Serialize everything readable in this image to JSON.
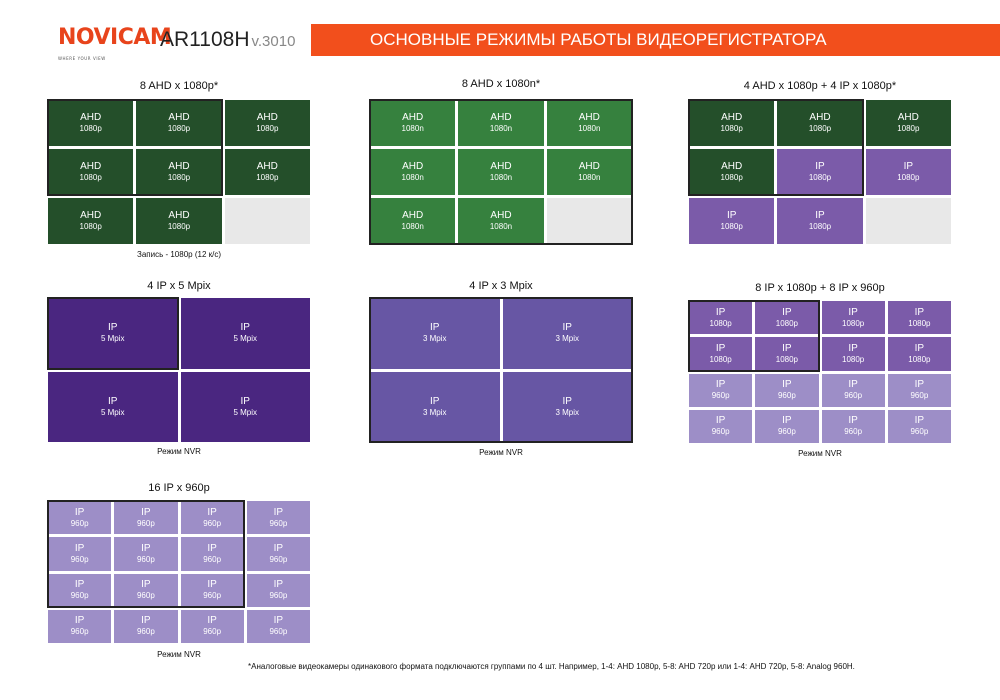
{
  "header": {
    "logo": "NOVICAM",
    "logo_tagline": "WHERE YOUR VIEW",
    "model": "AR1108H",
    "version": "v.3010",
    "title": "ОСНОВНЫЕ РЕЖИМЫ РАБОТЫ ВИДЕОРЕГИСТРАТОРА"
  },
  "panels": [
    {
      "id": "8ahd1080p",
      "title": "8 AHD x 1080p*",
      "note": "Запись - 1080p (12 к/с)",
      "cols": 3,
      "cells": [
        {
          "t": "AHD",
          "s": "1080p",
          "c": "ahd"
        },
        {
          "t": "AHD",
          "s": "1080p",
          "c": "ahd"
        },
        {
          "t": "AHD",
          "s": "1080p",
          "c": "ahd"
        },
        {
          "t": "AHD",
          "s": "1080p",
          "c": "ahd"
        },
        {
          "t": "AHD",
          "s": "1080p",
          "c": "ahd"
        },
        {
          "t": "AHD",
          "s": "1080p",
          "c": "ahd"
        },
        {
          "t": "AHD",
          "s": "1080p",
          "c": "ahd"
        },
        {
          "t": "AHD",
          "s": "1080p",
          "c": "ahd"
        },
        {
          "t": "",
          "s": "",
          "c": "empty"
        }
      ]
    },
    {
      "id": "8ahd1080n",
      "title": "8 AHD x 1080n*",
      "note": "",
      "cols": 3,
      "cells": [
        {
          "t": "AHD",
          "s": "1080n",
          "c": "ahdn"
        },
        {
          "t": "AHD",
          "s": "1080n",
          "c": "ahdn"
        },
        {
          "t": "AHD",
          "s": "1080n",
          "c": "ahdn"
        },
        {
          "t": "AHD",
          "s": "1080n",
          "c": "ahdn"
        },
        {
          "t": "AHD",
          "s": "1080n",
          "c": "ahdn"
        },
        {
          "t": "AHD",
          "s": "1080n",
          "c": "ahdn"
        },
        {
          "t": "AHD",
          "s": "1080n",
          "c": "ahdn"
        },
        {
          "t": "AHD",
          "s": "1080n",
          "c": "ahdn"
        },
        {
          "t": "",
          "s": "",
          "c": "empty"
        }
      ]
    },
    {
      "id": "4ahd4ip",
      "title": "4 AHD x 1080p + 4 IP x 1080p*",
      "note": "",
      "cols": 3,
      "cells": [
        {
          "t": "AHD",
          "s": "1080p",
          "c": "ahd"
        },
        {
          "t": "AHD",
          "s": "1080p",
          "c": "ahd"
        },
        {
          "t": "AHD",
          "s": "1080p",
          "c": "ahd"
        },
        {
          "t": "AHD",
          "s": "1080p",
          "c": "ahd"
        },
        {
          "t": "IP",
          "s": "1080p",
          "c": "ip1080"
        },
        {
          "t": "IP",
          "s": "1080p",
          "c": "ip1080"
        },
        {
          "t": "IP",
          "s": "1080p",
          "c": "ip1080"
        },
        {
          "t": "IP",
          "s": "1080p",
          "c": "ip1080"
        },
        {
          "t": "",
          "s": "",
          "c": "empty"
        }
      ]
    },
    {
      "id": "4ip5mp",
      "title": "4 IP x 5 Mpix",
      "note": "Режим NVR",
      "cols": 2,
      "cells": [
        {
          "t": "IP",
          "s": "5 Mpix",
          "c": "ip5"
        },
        {
          "t": "IP",
          "s": "5 Mpix",
          "c": "ip5"
        },
        {
          "t": "IP",
          "s": "5 Mpix",
          "c": "ip5"
        },
        {
          "t": "IP",
          "s": "5 Mpix",
          "c": "ip5"
        }
      ]
    },
    {
      "id": "4ip3mp",
      "title": "4 IP x 3 Mpix",
      "note": "Режим NVR",
      "cols": 2,
      "cells": [
        {
          "t": "IP",
          "s": "3 Mpix",
          "c": "ip3"
        },
        {
          "t": "IP",
          "s": "3 Mpix",
          "c": "ip3"
        },
        {
          "t": "IP",
          "s": "3 Mpix",
          "c": "ip3"
        },
        {
          "t": "IP",
          "s": "3 Mpix",
          "c": "ip3"
        }
      ]
    },
    {
      "id": "8ip1080_8ip960",
      "title": "8 IP x 1080p + 8 IP x 960p",
      "note": "Режим NVR",
      "cols": 4,
      "cells": [
        {
          "t": "IP",
          "s": "1080p",
          "c": "ip1080"
        },
        {
          "t": "IP",
          "s": "1080p",
          "c": "ip1080"
        },
        {
          "t": "IP",
          "s": "1080p",
          "c": "ip1080"
        },
        {
          "t": "IP",
          "s": "1080p",
          "c": "ip1080"
        },
        {
          "t": "IP",
          "s": "1080p",
          "c": "ip1080"
        },
        {
          "t": "IP",
          "s": "1080p",
          "c": "ip1080"
        },
        {
          "t": "IP",
          "s": "1080p",
          "c": "ip1080"
        },
        {
          "t": "IP",
          "s": "1080p",
          "c": "ip1080"
        },
        {
          "t": "IP",
          "s": "960p",
          "c": "ip960"
        },
        {
          "t": "IP",
          "s": "960p",
          "c": "ip960"
        },
        {
          "t": "IP",
          "s": "960p",
          "c": "ip960"
        },
        {
          "t": "IP",
          "s": "960p",
          "c": "ip960"
        },
        {
          "t": "IP",
          "s": "960p",
          "c": "ip960"
        },
        {
          "t": "IP",
          "s": "960p",
          "c": "ip960"
        },
        {
          "t": "IP",
          "s": "960p",
          "c": "ip960"
        },
        {
          "t": "IP",
          "s": "960p",
          "c": "ip960"
        }
      ]
    },
    {
      "id": "16ip960",
      "title": "16 IP x 960p",
      "note": "Режим NVR",
      "cols": 4,
      "cells": [
        {
          "t": "IP",
          "s": "960p",
          "c": "ip960"
        },
        {
          "t": "IP",
          "s": "960p",
          "c": "ip960"
        },
        {
          "t": "IP",
          "s": "960p",
          "c": "ip960"
        },
        {
          "t": "IP",
          "s": "960p",
          "c": "ip960"
        },
        {
          "t": "IP",
          "s": "960p",
          "c": "ip960"
        },
        {
          "t": "IP",
          "s": "960p",
          "c": "ip960"
        },
        {
          "t": "IP",
          "s": "960p",
          "c": "ip960"
        },
        {
          "t": "IP",
          "s": "960p",
          "c": "ip960"
        },
        {
          "t": "IP",
          "s": "960p",
          "c": "ip960"
        },
        {
          "t": "IP",
          "s": "960p",
          "c": "ip960"
        },
        {
          "t": "IP",
          "s": "960p",
          "c": "ip960"
        },
        {
          "t": "IP",
          "s": "960p",
          "c": "ip960"
        },
        {
          "t": "IP",
          "s": "960p",
          "c": "ip960"
        },
        {
          "t": "IP",
          "s": "960p",
          "c": "ip960"
        },
        {
          "t": "IP",
          "s": "960p",
          "c": "ip960"
        },
        {
          "t": "IP",
          "s": "960p",
          "c": "ip960"
        }
      ]
    }
  ],
  "footnote": "*Аналоговые видеокамеры одинакового формата подключаются группами по 4 шт. Например, 1-4: AHD 1080p, 5-8: AHD 720p или 1-4: AHD 720p, 5-8: Analog 960H."
}
